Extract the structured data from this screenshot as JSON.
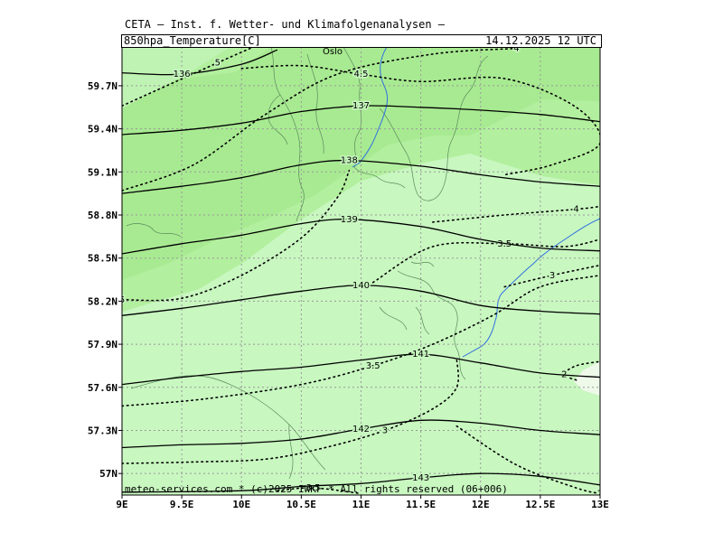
{
  "header": {
    "institution": "CETA – Inst. f. Wetter- und Klimafolgenanalysen –",
    "parameter": "850hpa_Temperature[C]",
    "valid_time": "14.12.2025  12 UTC"
  },
  "footer": {
    "credit": "meteo-services.com * (c)2025 IWKF * All rights reserved (06+006)"
  },
  "map": {
    "city_label": "Oslo",
    "lon_ticks": [
      "9E",
      "9.5E",
      "10E",
      "10.5E",
      "11E",
      "11.5E",
      "12E",
      "12.5E",
      "13E"
    ],
    "lat_ticks": [
      "57N",
      "57.3N",
      "57.6N",
      "57.9N",
      "58.2N",
      "58.5N",
      "58.8N",
      "59.1N",
      "59.4N",
      "59.7N"
    ],
    "lon_range": [
      9,
      13
    ],
    "lat_range": [
      56.85,
      59.97
    ],
    "colors": {
      "light_green": "#c8f7c0",
      "mid_green": "#b2ef9e",
      "dark_green": "#a2e68c",
      "river": "#2f6fe0",
      "coast": "#5a8a5a",
      "grid": "#999999"
    }
  },
  "chart_data": {
    "type": "contour",
    "variable": "850hPa temperature (C) with geopotential height",
    "geopotential_contours": [
      {
        "label": "136",
        "points": [
          [
            9,
            59.79
          ],
          [
            9.5,
            59.78
          ],
          [
            10,
            59.85
          ],
          [
            10.3,
            59.95
          ]
        ]
      },
      {
        "label": "137",
        "points": [
          [
            9,
            59.36
          ],
          [
            9.5,
            59.39
          ],
          [
            10,
            59.44
          ],
          [
            10.5,
            59.52
          ],
          [
            11,
            59.56
          ],
          [
            11.5,
            59.55
          ],
          [
            12,
            59.53
          ],
          [
            12.5,
            59.5
          ],
          [
            13,
            59.45
          ]
        ]
      },
      {
        "label": "138",
        "points": [
          [
            9,
            58.95
          ],
          [
            9.5,
            59.0
          ],
          [
            10,
            59.06
          ],
          [
            10.5,
            59.15
          ],
          [
            10.9,
            59.18
          ],
          [
            11.5,
            59.14
          ],
          [
            12,
            59.08
          ],
          [
            12.5,
            59.03
          ],
          [
            13,
            59.0
          ]
        ]
      },
      {
        "label": "139",
        "points": [
          [
            9,
            58.53
          ],
          [
            9.5,
            58.6
          ],
          [
            10,
            58.66
          ],
          [
            10.5,
            58.74
          ],
          [
            10.9,
            58.77
          ],
          [
            11.5,
            58.72
          ],
          [
            12,
            58.63
          ],
          [
            12.5,
            58.57
          ],
          [
            13,
            58.55
          ]
        ]
      },
      {
        "label": "140",
        "points": [
          [
            9,
            58.1
          ],
          [
            9.5,
            58.15
          ],
          [
            10,
            58.21
          ],
          [
            10.5,
            58.27
          ],
          [
            11,
            58.31
          ],
          [
            11.5,
            58.27
          ],
          [
            12,
            58.17
          ],
          [
            12.5,
            58.13
          ],
          [
            13,
            58.11
          ]
        ]
      },
      {
        "label": "141",
        "points": [
          [
            9,
            57.62
          ],
          [
            9.5,
            57.67
          ],
          [
            10,
            57.71
          ],
          [
            10.5,
            57.74
          ],
          [
            11,
            57.79
          ],
          [
            11.5,
            57.83
          ],
          [
            12,
            57.77
          ],
          [
            12.5,
            57.7
          ],
          [
            13,
            57.67
          ]
        ]
      },
      {
        "label": "142",
        "points": [
          [
            9,
            57.18
          ],
          [
            9.5,
            57.2
          ],
          [
            10,
            57.21
          ],
          [
            10.5,
            57.24
          ],
          [
            11,
            57.31
          ],
          [
            11.5,
            57.37
          ],
          [
            12,
            57.35
          ],
          [
            12.5,
            57.3
          ],
          [
            13,
            57.27
          ]
        ]
      },
      {
        "label": "143",
        "points": [
          [
            9,
            56.87
          ],
          [
            10,
            56.88
          ],
          [
            10.5,
            56.91
          ],
          [
            11,
            56.93
          ],
          [
            11.5,
            56.97
          ],
          [
            12,
            57.0
          ],
          [
            12.5,
            56.98
          ],
          [
            13,
            56.92
          ]
        ]
      }
    ],
    "temperature_isotherms": [
      {
        "label": "5",
        "points": [
          [
            9,
            59.56
          ],
          [
            9.8,
            59.86
          ],
          [
            10.1,
            59.97
          ]
        ]
      },
      {
        "label": "4.5",
        "points": [
          [
            10,
            59.82
          ],
          [
            10.5,
            59.84
          ],
          [
            11,
            59.78
          ],
          [
            11.5,
            59.73
          ],
          [
            12.2,
            59.75
          ],
          [
            12.8,
            59.55
          ],
          [
            13,
            59.3
          ],
          [
            12.6,
            59.15
          ],
          [
            12.2,
            59.08
          ]
        ]
      },
      {
        "label": "4",
        "points": [
          [
            9,
            58.97
          ],
          [
            9.6,
            59.15
          ],
          [
            10.2,
            59.5
          ],
          [
            10.8,
            59.78
          ],
          [
            11.6,
            59.92
          ],
          [
            12.3,
            59.96
          ]
        ]
      },
      {
        "label": "4",
        "points": [
          [
            11.6,
            58.75
          ],
          [
            12.2,
            58.8
          ],
          [
            12.8,
            58.84
          ],
          [
            13,
            58.86
          ]
        ]
      },
      {
        "label": "3.5",
        "points": [
          [
            11.1,
            58.33
          ],
          [
            11.6,
            58.58
          ],
          [
            12.2,
            58.6
          ],
          [
            12.7,
            58.58
          ],
          [
            13,
            58.63
          ]
        ]
      },
      {
        "label": "3",
        "points": [
          [
            12.2,
            58.3
          ],
          [
            12.6,
            58.38
          ],
          [
            13,
            58.45
          ]
        ]
      },
      {
        "label": "5",
        "points": [
          [
            9,
            58.21
          ],
          [
            9.5,
            58.22
          ],
          [
            10,
            58.38
          ],
          [
            10.5,
            58.64
          ],
          [
            10.8,
            58.92
          ],
          [
            10.9,
            59.11
          ]
        ]
      },
      {
        "label": "3.5",
        "points": [
          [
            9,
            57.47
          ],
          [
            9.7,
            57.52
          ],
          [
            10.5,
            57.62
          ],
          [
            11.1,
            57.75
          ],
          [
            11.6,
            57.9
          ],
          [
            12.1,
            58.1
          ],
          [
            12.5,
            58.3
          ],
          [
            13,
            58.38
          ]
        ]
      },
      {
        "label": "3",
        "points": [
          [
            9,
            57.07
          ],
          [
            9.6,
            57.08
          ],
          [
            10.2,
            57.1
          ],
          [
            10.7,
            57.18
          ],
          [
            11.2,
            57.3
          ],
          [
            11.6,
            57.45
          ],
          [
            11.8,
            57.6
          ],
          [
            11.8,
            57.8
          ]
        ]
      },
      {
        "label": "3.5",
        "points": [
          [
            10.3,
            56.88
          ],
          [
            10.6,
            56.9
          ],
          [
            11,
            56.86
          ]
        ]
      },
      {
        "label": "2",
        "points": [
          [
            12.8,
            57.65
          ],
          [
            12.7,
            57.69
          ],
          [
            12.8,
            57.75
          ],
          [
            13,
            57.78
          ]
        ]
      },
      {
        "label": "2",
        "points": [
          [
            11.8,
            57.33
          ],
          [
            12.3,
            57.06
          ],
          [
            12.8,
            56.9
          ],
          [
            13,
            56.86
          ]
        ]
      }
    ]
  }
}
